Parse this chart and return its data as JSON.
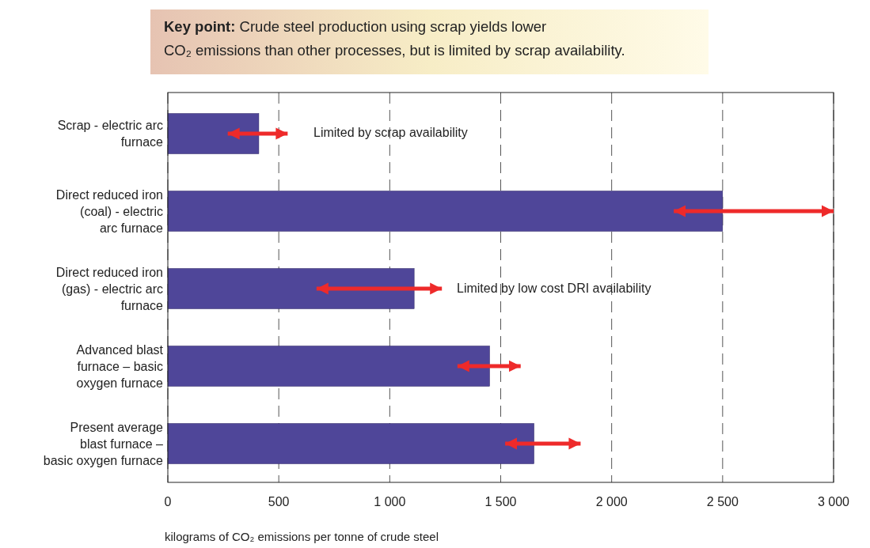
{
  "chart_data": {
    "type": "bar",
    "orientation": "horizontal",
    "title": "Key point: Crude steel production using scrap yields lower CO₂ emissions than other processes, but is limited by scrap availability.",
    "xlabel": "kilograms of CO₂ emissions per tonne of crude steel",
    "categories": [
      "Scrap - electric arc furnace",
      "Direct reduced iron (coal) - electric arc furnace",
      "Direct reduced iron (gas) - electric arc furnace",
      "Advanced blast furnace – basic oxygen furnace",
      "Present average blast furnace – basic oxygen furnace"
    ],
    "values": [
      410,
      2500,
      1110,
      1450,
      1650
    ],
    "errors": [
      [
        270,
        540
      ],
      [
        2280,
        3000
      ],
      [
        670,
        1235
      ],
      [
        1305,
        1590
      ],
      [
        1520,
        1860
      ]
    ],
    "color": "#4f4699",
    "xlim": [
      0,
      3000
    ],
    "xticks": [
      0,
      500,
      {
        "value": 1000,
        "label": "1 000"
      },
      {
        "value": 1500,
        "label": "1 500"
      },
      {
        "value": 2000,
        "label": "2 000"
      },
      {
        "value": 2500,
        "label": "2 500"
      },
      {
        "value": 3000,
        "label": "3 000"
      }
    ],
    "grid": "x",
    "annotations": [
      "Limited by scrap availability",
      "Limited by low cost DRI availability"
    ]
  }
}
